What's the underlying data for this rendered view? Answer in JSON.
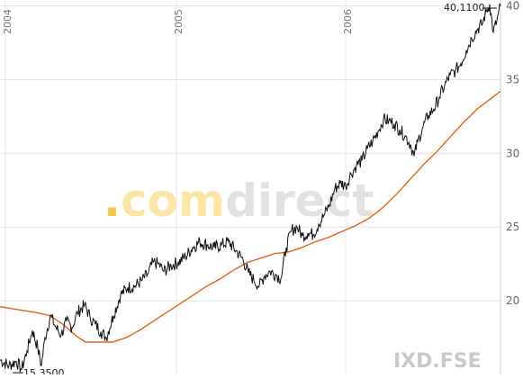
{
  "colors": {
    "price_line": "#111111",
    "moving_average": "#e8620f",
    "grid": "#e4e4e4",
    "watermark_dot": "#f7c64a",
    "watermark_com": "#fbe6a6",
    "watermark_direct": "#e2e2e2",
    "ticker": "#c9c9c9"
  },
  "watermark": {
    "dot": ".",
    "com": "com",
    "direct": "direct"
  },
  "ticker": "IXD.FSE",
  "chart_data": {
    "type": "line",
    "x_tick_labels": [
      "2004",
      "2005",
      "2006"
    ],
    "y_ticks": [
      20,
      25,
      30,
      35,
      40
    ],
    "y_tick_labels": [
      "20",
      "25",
      "30",
      "35",
      "40"
    ],
    "ylim": [
      15.0,
      40.4
    ],
    "grid": true,
    "annotations": {
      "max_label": "40,1100",
      "min_label": "15,3500"
    },
    "series": [
      {
        "values": [
          [
            0,
            16.0
          ],
          [
            10,
            15.6
          ],
          [
            18,
            15.9
          ],
          [
            24,
            15.35
          ],
          [
            30,
            16.6
          ],
          [
            36,
            18.0
          ],
          [
            42,
            16.8
          ],
          [
            46,
            15.6
          ],
          [
            50,
            17.5
          ],
          [
            56,
            19.0
          ],
          [
            62,
            18.2
          ],
          [
            68,
            17.7
          ],
          [
            74,
            18.6
          ],
          [
            80,
            18.2
          ],
          [
            86,
            19.2
          ],
          [
            94,
            19.7
          ],
          [
            100,
            18.9
          ],
          [
            106,
            18.4
          ],
          [
            112,
            17.9
          ],
          [
            118,
            17.5
          ],
          [
            126,
            19.0
          ],
          [
            134,
            20.4
          ],
          [
            142,
            20.9
          ],
          [
            150,
            21.0
          ],
          [
            158,
            21.4
          ],
          [
            164,
            21.8
          ],
          [
            170,
            22.6
          ],
          [
            176,
            22.5
          ],
          [
            182,
            22.0
          ],
          [
            190,
            22.4
          ],
          [
            198,
            22.6
          ],
          [
            206,
            23.0
          ],
          [
            214,
            23.6
          ],
          [
            222,
            24.0
          ],
          [
            230,
            23.8
          ],
          [
            238,
            23.6
          ],
          [
            246,
            23.8
          ],
          [
            254,
            24.0
          ],
          [
            262,
            23.4
          ],
          [
            270,
            22.8
          ],
          [
            276,
            21.9
          ],
          [
            282,
            21.4
          ],
          [
            288,
            21.0
          ],
          [
            294,
            21.7
          ],
          [
            300,
            22.0
          ],
          [
            306,
            21.8
          ],
          [
            312,
            21.5
          ],
          [
            318,
            23.6
          ],
          [
            324,
            24.8
          ],
          [
            330,
            25.0
          ],
          [
            336,
            24.4
          ],
          [
            342,
            24.6
          ],
          [
            348,
            24.5
          ],
          [
            354,
            25.2
          ],
          [
            360,
            25.8
          ],
          [
            366,
            26.5
          ],
          [
            372,
            27.6
          ],
          [
            378,
            28.0
          ],
          [
            384,
            27.8
          ],
          [
            390,
            28.6
          ],
          [
            396,
            29.2
          ],
          [
            402,
            29.5
          ],
          [
            408,
            30.3
          ],
          [
            414,
            30.8
          ],
          [
            420,
            31.5
          ],
          [
            426,
            32.3
          ],
          [
            432,
            32.2
          ],
          [
            438,
            32.0
          ],
          [
            444,
            31.6
          ],
          [
            450,
            31.2
          ],
          [
            456,
            30.6
          ],
          [
            460,
            29.8
          ],
          [
            464,
            30.8
          ],
          [
            470,
            31.8
          ],
          [
            476,
            32.6
          ],
          [
            482,
            33.0
          ],
          [
            488,
            33.8
          ],
          [
            494,
            34.6
          ],
          [
            500,
            35.3
          ],
          [
            506,
            35.6
          ],
          [
            512,
            36.1
          ],
          [
            518,
            37.0
          ],
          [
            524,
            37.8
          ],
          [
            530,
            38.4
          ],
          [
            536,
            38.8
          ],
          [
            540,
            39.6
          ],
          [
            544,
            40.11
          ],
          [
            548,
            38.2
          ],
          [
            552,
            39.0
          ],
          [
            556,
            40.0
          ]
        ]
      },
      {
        "values": [
          [
            0,
            19.6
          ],
          [
            20,
            19.4
          ],
          [
            40,
            19.2
          ],
          [
            55,
            19.0
          ],
          [
            70,
            18.4
          ],
          [
            85,
            17.6
          ],
          [
            95,
            17.2
          ],
          [
            110,
            17.2
          ],
          [
            125,
            17.2
          ],
          [
            140,
            17.5
          ],
          [
            155,
            18.0
          ],
          [
            170,
            18.6
          ],
          [
            185,
            19.2
          ],
          [
            200,
            19.8
          ],
          [
            215,
            20.4
          ],
          [
            230,
            21.0
          ],
          [
            245,
            21.5
          ],
          [
            260,
            22.1
          ],
          [
            275,
            22.6
          ],
          [
            290,
            22.9
          ],
          [
            305,
            23.2
          ],
          [
            320,
            23.3
          ],
          [
            335,
            23.6
          ],
          [
            350,
            24.0
          ],
          [
            365,
            24.3
          ],
          [
            380,
            24.7
          ],
          [
            395,
            25.1
          ],
          [
            410,
            25.6
          ],
          [
            425,
            26.3
          ],
          [
            440,
            27.2
          ],
          [
            455,
            28.2
          ],
          [
            470,
            29.2
          ],
          [
            485,
            30.1
          ],
          [
            500,
            31.1
          ],
          [
            515,
            32.1
          ],
          [
            530,
            33.0
          ],
          [
            545,
            33.7
          ],
          [
            556,
            34.2
          ]
        ]
      }
    ]
  }
}
